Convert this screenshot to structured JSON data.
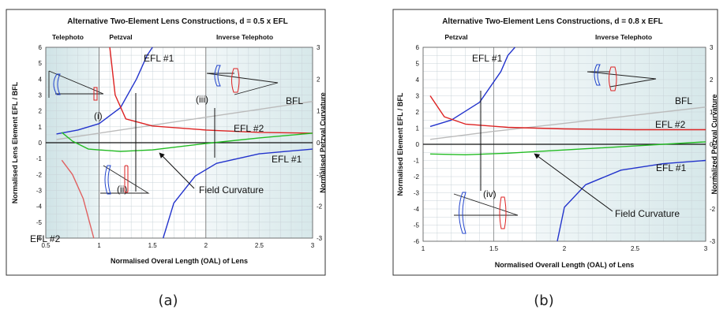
{
  "chart_data": [
    {
      "type": "line",
      "title": "Alternative Two-Element Lens Constructions, d = 0.5 x EFL",
      "xlabel": "Normalised Overal Length (OAL) of Lens",
      "ylabel": "Normalised Lens Element EFL / BFL",
      "y2label": "Normalised Petzval Curvature",
      "xlim": [
        0.5,
        3
      ],
      "ylim": [
        -6,
        6
      ],
      "y2lim": [
        -3,
        3
      ],
      "xticks": [
        "0.5",
        "1",
        "1.5",
        "2",
        "2.5",
        "3"
      ],
      "yticks": [
        "-6",
        "-5",
        "-4",
        "-3",
        "-2",
        "-1",
        "0",
        "1",
        "2",
        "3",
        "4",
        "5",
        "6"
      ],
      "y2ticks": [
        "-3",
        "-2",
        "-1",
        "0",
        "1",
        "2",
        "3"
      ],
      "grid": true,
      "regions": [
        {
          "label": "Telephoto",
          "x": [
            0.5,
            1.0
          ],
          "shaded": true
        },
        {
          "label": "Petzval",
          "x": [
            1.0,
            2.0
          ],
          "shaded": false
        },
        {
          "label": "Inverse Telephoto",
          "x": [
            2.0,
            3.0
          ],
          "shaded": true
        }
      ],
      "series": [
        {
          "name": "BFL",
          "color": "#bbbbbb",
          "x": [
            0.6,
            1.0,
            1.5,
            2.0,
            2.5,
            3.0
          ],
          "y": [
            0.2,
            0.6,
            1.1,
            1.6,
            2.1,
            2.6
          ]
        },
        {
          "name": "EFL #1",
          "color": "#2233cc",
          "x": [
            0.6,
            0.8,
            1.0,
            1.2,
            1.35,
            1.45,
            1.5
          ],
          "y": [
            0.55,
            0.8,
            1.2,
            2.2,
            4.0,
            5.5,
            6.0
          ]
        },
        {
          "name": "EFL #1",
          "color": "#2233cc",
          "x": [
            1.6,
            1.7,
            1.9,
            2.1,
            2.5,
            3.0
          ],
          "y": [
            -6.0,
            -3.8,
            -2.1,
            -1.3,
            -0.7,
            -0.4
          ]
        },
        {
          "name": "EFL #2",
          "color": "#dd2222",
          "x": [
            1.1,
            1.15,
            1.25,
            1.5,
            2.0,
            2.5,
            3.0
          ],
          "y": [
            6.0,
            3.0,
            1.5,
            1.05,
            0.8,
            0.65,
            0.6
          ]
        },
        {
          "name": "EFL #2",
          "color": "#e06060",
          "x": [
            0.65,
            0.75,
            0.85,
            0.95
          ],
          "y": [
            -1.1,
            -2.0,
            -3.5,
            -6.0
          ]
        },
        {
          "name": "Field Curvature",
          "color": "#22bb22",
          "x": [
            0.65,
            0.75,
            0.9,
            1.2,
            1.5,
            2.0,
            2.5,
            3.0
          ],
          "y": [
            0.65,
            0.1,
            -0.4,
            -0.55,
            -0.45,
            -0.05,
            0.3,
            0.6
          ]
        }
      ],
      "annotations": [
        "Telephoto",
        "Petzval",
        "Inverse Telephoto",
        "EFL #1",
        "EFL #2",
        "BFL",
        "EFL #2",
        "EFL #1",
        "Field Curvature",
        "(i)",
        "(ii)",
        "(iii)"
      ],
      "caption": "(a)"
    },
    {
      "type": "line",
      "title": "Alternative Two-Element Lens Constructions, d = 0.8 x EFL",
      "xlabel": "Normalised Overall Length (OAL) of Lens",
      "ylabel": "Normalised Element EFL / BFL",
      "y2label": "Normalized Petzval Curvature",
      "xlim": [
        1,
        3
      ],
      "ylim": [
        -6,
        6
      ],
      "y2lim": [
        -3,
        3
      ],
      "xticks": [
        "1",
        "1.5",
        "2",
        "2.5",
        "3"
      ],
      "yticks": [
        "-6",
        "-5",
        "-4",
        "-3",
        "-2",
        "-1",
        "0",
        "1",
        "2",
        "3",
        "4",
        "5",
        "6"
      ],
      "y2ticks": [
        "-3",
        "-2",
        "-1",
        "0",
        "1",
        "2",
        "3"
      ],
      "grid": true,
      "regions": [
        {
          "label": "Petzval",
          "x": [
            1.0,
            1.8
          ],
          "shaded": false
        },
        {
          "label": "Inverse Telephoto",
          "x": [
            1.8,
            3.0
          ],
          "shaded": true
        }
      ],
      "series": [
        {
          "name": "BFL",
          "color": "#bbbbbb",
          "x": [
            1.05,
            1.5,
            2.0,
            2.5,
            3.0
          ],
          "y": [
            0.3,
            0.8,
            1.3,
            1.8,
            2.3
          ]
        },
        {
          "name": "EFL #1",
          "color": "#2233cc",
          "x": [
            1.05,
            1.2,
            1.4,
            1.55,
            1.6,
            1.65
          ],
          "y": [
            1.1,
            1.5,
            2.6,
            4.5,
            5.5,
            6.0
          ]
        },
        {
          "name": "EFL #1",
          "color": "#2233cc",
          "x": [
            1.95,
            2.0,
            2.15,
            2.4,
            2.7,
            3.0
          ],
          "y": [
            -6.0,
            -3.9,
            -2.5,
            -1.6,
            -1.2,
            -1.0
          ]
        },
        {
          "name": "EFL #2",
          "color": "#dd2222",
          "x": [
            1.05,
            1.15,
            1.3,
            1.6,
            2.0,
            2.5,
            3.0
          ],
          "y": [
            3.0,
            1.7,
            1.25,
            1.05,
            0.95,
            0.9,
            0.9
          ]
        },
        {
          "name": "Field Curvature",
          "color": "#22bb22",
          "x": [
            1.05,
            1.3,
            1.6,
            2.0,
            2.5,
            3.0
          ],
          "y": [
            -0.6,
            -0.65,
            -0.55,
            -0.35,
            -0.1,
            0.15
          ]
        }
      ],
      "annotations": [
        "Petzval",
        "Inverse Telephoto",
        "EFL #1",
        "BFL",
        "EFL #2",
        "EFL #1",
        "Field Curvature",
        "(iv)"
      ],
      "caption": "(b)"
    }
  ]
}
